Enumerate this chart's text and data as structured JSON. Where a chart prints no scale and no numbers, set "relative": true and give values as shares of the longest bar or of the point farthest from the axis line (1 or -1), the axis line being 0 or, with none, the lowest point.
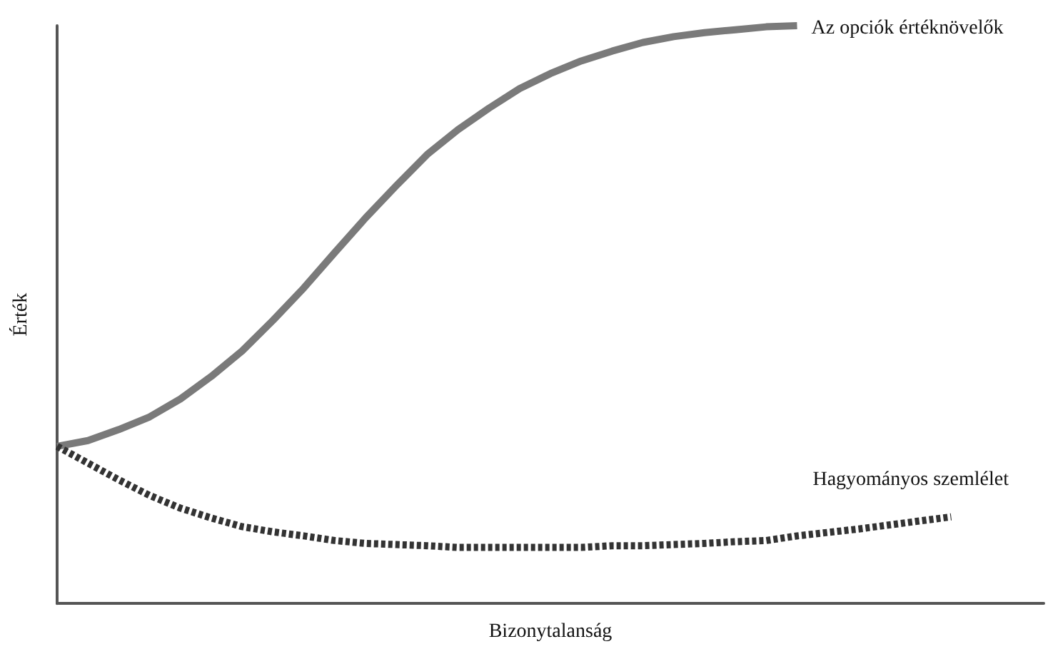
{
  "chart_data": {
    "type": "line",
    "relative": true,
    "xlabel": "Bizonytalanság",
    "ylabel": "Érték",
    "marker": "none",
    "categories": [
      null,
      null,
      null,
      null,
      null,
      null,
      null,
      null,
      null,
      null,
      null,
      null,
      null,
      null,
      null,
      null,
      null,
      null,
      null,
      null,
      null,
      null,
      null,
      null,
      null,
      null,
      null,
      null,
      null,
      null,
      null,
      null,
      null
    ],
    "series": [
      {
        "name": "Az opciók értéknövelők",
        "color": "#7a7a7a",
        "line_style": "solid",
        "values": [
          0.272,
          0.282,
          0.301,
          0.323,
          0.354,
          0.393,
          0.437,
          0.49,
          0.546,
          0.607,
          0.667,
          0.723,
          0.777,
          0.82,
          0.857,
          0.891,
          0.917,
          0.939,
          0.956,
          0.971,
          0.981,
          0.988,
          0.993,
          0.998,
          1,
          null,
          null,
          null,
          null,
          null,
          null,
          null,
          null
        ]
      },
      {
        "name": "Hagyományos szemlélet",
        "color": "#333333",
        "line_style": "dashed",
        "values": [
          0.272,
          0.243,
          0.214,
          0.187,
          0.165,
          0.148,
          0.133,
          0.124,
          0.117,
          0.109,
          0.104,
          0.102,
          0.1,
          0.097,
          0.097,
          0.097,
          0.097,
          0.097,
          0.1,
          0.1,
          0.102,
          0.104,
          0.107,
          0.109,
          0.117,
          0.123,
          0.129,
          0.136,
          0.143,
          0.15,
          null,
          null,
          null
        ]
      }
    ]
  }
}
